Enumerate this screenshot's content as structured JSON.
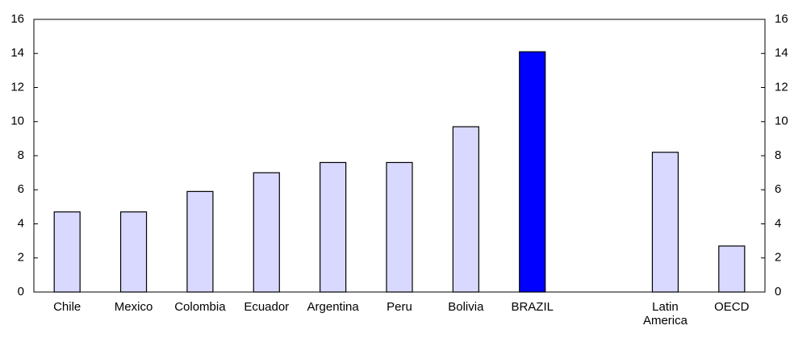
{
  "chart_data": {
    "type": "bar",
    "categories": [
      "Chile",
      "Mexico",
      "Colombia",
      "Ecuador",
      "Argentina",
      "Peru",
      "Bolivia",
      "BRAZIL",
      null,
      "Latin America",
      "OECD"
    ],
    "values": [
      4.7,
      4.7,
      5.9,
      7.0,
      7.6,
      7.6,
      9.7,
      14.1,
      null,
      8.2,
      2.7
    ],
    "colors": [
      "#d9d9ff",
      "#d9d9ff",
      "#d9d9ff",
      "#d9d9ff",
      "#d9d9ff",
      "#d9d9ff",
      "#d9d9ff",
      "#0000ff",
      null,
      "#d9d9ff",
      "#d9d9ff"
    ],
    "ylim": [
      0,
      16
    ],
    "yticks": [
      0,
      2,
      4,
      6,
      8,
      10,
      12,
      14,
      16
    ],
    "y2lim": [
      0,
      16
    ],
    "y2ticks": [
      0,
      2,
      4,
      6,
      8,
      10,
      12,
      14,
      16
    ],
    "grid": false
  }
}
